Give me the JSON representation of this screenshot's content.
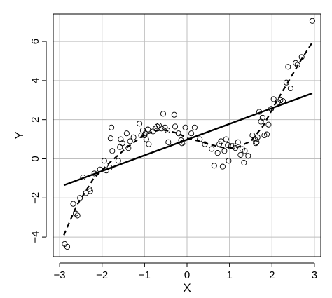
{
  "chart_data": {
    "type": "scatter",
    "xlabel": "X",
    "ylabel": "Y",
    "xlim": [
      -3.15,
      3.15
    ],
    "ylim": [
      -5.0,
      7.4
    ],
    "xticks": [
      -3,
      -2,
      -1,
      0,
      1,
      2,
      3
    ],
    "yticks": [
      -4,
      -2,
      0,
      2,
      4,
      6
    ],
    "grid": true,
    "colors": {
      "points": "#000000",
      "grid": "#bfbfbf",
      "lines": "#000000"
    },
    "points": [
      [
        -2.88,
        -4.35
      ],
      [
        -2.82,
        -4.5
      ],
      [
        -2.68,
        -2.3
      ],
      [
        -2.62,
        -2.8
      ],
      [
        -2.58,
        -2.9
      ],
      [
        -2.52,
        -2.0
      ],
      [
        -2.45,
        -0.95
      ],
      [
        -2.38,
        -1.75
      ],
      [
        -2.3,
        -1.55
      ],
      [
        -2.28,
        -1.65
      ],
      [
        -2.18,
        -0.75
      ],
      [
        -2.05,
        -0.55
      ],
      [
        -1.95,
        -0.1
      ],
      [
        -1.9,
        -0.6
      ],
      [
        -1.82,
        -0.45
      ],
      [
        -1.8,
        1.05
      ],
      [
        -1.78,
        1.6
      ],
      [
        -1.76,
        0.4
      ],
      [
        -1.62,
        -0.1
      ],
      [
        -1.58,
        0.6
      ],
      [
        -1.56,
        1.0
      ],
      [
        -1.52,
        0.8
      ],
      [
        -1.42,
        1.3
      ],
      [
        -1.38,
        0.55
      ],
      [
        -1.34,
        0.9
      ],
      [
        -1.26,
        1.1
      ],
      [
        -1.12,
        1.8
      ],
      [
        -1.08,
        1.2
      ],
      [
        -1.04,
        1.45
      ],
      [
        -1.0,
        1.2
      ],
      [
        -0.98,
        1.3
      ],
      [
        -0.96,
        1.0
      ],
      [
        -0.92,
        1.5
      ],
      [
        -0.9,
        0.75
      ],
      [
        -0.8,
        1.4
      ],
      [
        -0.74,
        1.55
      ],
      [
        -0.7,
        1.65
      ],
      [
        -0.66,
        1.7
      ],
      [
        -0.6,
        1.55
      ],
      [
        -0.56,
        2.3
      ],
      [
        -0.52,
        1.6
      ],
      [
        -0.46,
        1.45
      ],
      [
        -0.44,
        0.85
      ],
      [
        -0.3,
        2.25
      ],
      [
        -0.28,
        1.65
      ],
      [
        -0.2,
        1.3
      ],
      [
        -0.14,
        0.95
      ],
      [
        -0.12,
        0.8
      ],
      [
        -0.08,
        0.85
      ],
      [
        -0.04,
        1.6
      ],
      [
        0.1,
        1.3
      ],
      [
        0.18,
        1.6
      ],
      [
        0.3,
        1.0
      ],
      [
        0.42,
        0.75
      ],
      [
        0.58,
        0.5
      ],
      [
        0.64,
        -0.35
      ],
      [
        0.72,
        0.3
      ],
      [
        0.76,
        0.75
      ],
      [
        0.8,
        0.9
      ],
      [
        0.84,
        -0.4
      ],
      [
        0.88,
        0.4
      ],
      [
        0.92,
        1.0
      ],
      [
        0.96,
        0.7
      ],
      [
        0.98,
        -0.1
      ],
      [
        1.04,
        0.65
      ],
      [
        1.08,
        0.65
      ],
      [
        1.14,
        0.55
      ],
      [
        1.2,
        0.85
      ],
      [
        1.26,
        0.2
      ],
      [
        1.3,
        0.5
      ],
      [
        1.34,
        -0.2
      ],
      [
        1.36,
        0.4
      ],
      [
        1.44,
        0.15
      ],
      [
        1.54,
        1.2
      ],
      [
        1.6,
        1.0
      ],
      [
        1.62,
        0.8
      ],
      [
        1.64,
        0.85
      ],
      [
        1.66,
        1.1
      ],
      [
        1.7,
        2.4
      ],
      [
        1.74,
        1.9
      ],
      [
        1.78,
        2.1
      ],
      [
        1.82,
        1.2
      ],
      [
        1.88,
        1.25
      ],
      [
        1.92,
        1.75
      ],
      [
        1.98,
        2.55
      ],
      [
        2.04,
        3.05
      ],
      [
        2.14,
        2.9
      ],
      [
        2.2,
        3.0
      ],
      [
        2.26,
        2.95
      ],
      [
        2.34,
        3.9
      ],
      [
        2.38,
        4.7
      ],
      [
        2.44,
        3.6
      ],
      [
        2.56,
        4.9
      ],
      [
        2.6,
        4.8
      ],
      [
        2.7,
        5.2
      ],
      [
        2.95,
        7.05
      ]
    ],
    "fitted_line": {
      "style": "solid",
      "x": [
        -2.9,
        2.95
      ],
      "y": [
        -1.35,
        3.35
      ]
    },
    "true_curve": {
      "style": "dashed",
      "x": [
        -2.9,
        -2.6,
        -2.2,
        -1.8,
        -1.4,
        -1.0,
        -0.6,
        -0.2,
        0.0,
        0.3,
        0.6,
        0.9,
        1.2,
        1.5,
        1.8,
        2.1,
        2.4,
        2.7,
        2.95
      ],
      "y": [
        -3.9,
        -2.4,
        -1.0,
        -0.15,
        0.6,
        1.25,
        1.5,
        1.3,
        1.05,
        0.9,
        0.7,
        0.55,
        0.6,
        0.9,
        1.7,
        2.9,
        4.0,
        5.1,
        5.95
      ]
    }
  }
}
